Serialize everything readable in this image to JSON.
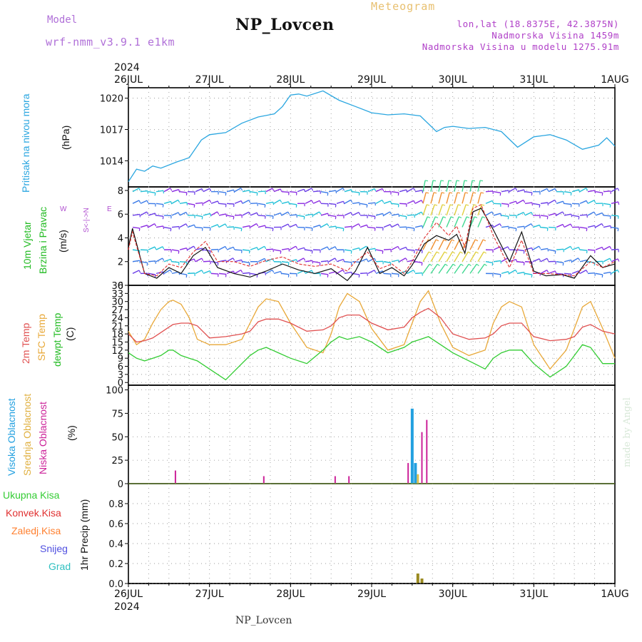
{
  "header": {
    "model_label": "Model",
    "model_name": "wrf-nmm_v3.9.1 e1km",
    "title": "NP_Lovcen",
    "meteogram": "Meteogram",
    "lonlat": "lon,lat (18.8375E, 42.3875N)",
    "altitude": "Nadmorska Visina 1459m",
    "model_altitude": "Nadmorska Visina u modelu 1275.91m"
  },
  "footer": {
    "title": "NP_Lovcen",
    "credit": "made by Angel"
  },
  "time_axis": {
    "year": "2024",
    "labels": [
      "26JUL",
      "27JUL",
      "28JUL",
      "29JUL",
      "30JUL",
      "31JUL",
      "1AUG"
    ]
  },
  "panels": {
    "pressure": {
      "label": "Pritisak na nivou mora",
      "unit": "(hPa)"
    },
    "wind": {
      "label1": "10m Vjetar",
      "label2": "Brzina i Pravac",
      "unit": "(m/s)",
      "compass_ns": "S<-|->N",
      "compass_w": "W",
      "compass_e": "E"
    },
    "temp": {
      "label1": "2m Temp",
      "label2": "SFC Temp",
      "label3": "dewpt Temp",
      "unit": "(C)"
    },
    "cloud": {
      "label1": "Visoka Oblacnost",
      "label2": "Srednja Oblacnost",
      "label3": "Niska Oblacnost",
      "unit": "(%)"
    },
    "precip": {
      "unit": "1hr Precip (mm)",
      "legend": [
        "Ukupna Kisa",
        "Konvek.Kisa",
        "Zaledj.Kisa",
        "Snijeg",
        "Grad"
      ]
    }
  },
  "colors": {
    "pressure": "#2aa6e0",
    "wind_mean": "#111111",
    "wind_gust": "#e03030",
    "t2m": "#e05050",
    "sfc": "#e8a838",
    "dew": "#33cc33",
    "high_cloud": "#22a0e0",
    "mid_cloud": "#e0c050",
    "low_cloud": "#cc2299",
    "precip": "#9a8a20",
    "precip_conv": "#d04040",
    "legend_colors": [
      "#33cc33",
      "#e03030",
      "#ff8030",
      "#5050e0",
      "#30c0c0"
    ]
  },
  "chart_data": [
    {
      "type": "line",
      "title": "Pritisak na nivou mora",
      "ylabel": "(hPa)",
      "ylim": [
        1011.5,
        1021
      ],
      "yticks": [
        1014,
        1017,
        1020
      ],
      "x_unit": "days since 26JUL 00UTC",
      "series": [
        {
          "name": "Pritisak na nivou mora",
          "x": [
            0,
            0.1,
            0.2,
            0.3,
            0.4,
            0.6,
            0.75,
            0.9,
            1.0,
            1.2,
            1.4,
            1.6,
            1.8,
            1.9,
            2.0,
            2.1,
            2.2,
            2.4,
            2.6,
            2.8,
            3.0,
            3.2,
            3.4,
            3.6,
            3.8,
            3.9,
            4.0,
            4.2,
            4.4,
            4.6,
            4.8,
            5.0,
            5.2,
            5.4,
            5.6,
            5.8,
            5.9,
            6.0
          ],
          "values": [
            1012.0,
            1013.2,
            1013.0,
            1013.5,
            1013.3,
            1013.9,
            1014.3,
            1016.0,
            1016.5,
            1016.7,
            1017.6,
            1018.2,
            1018.5,
            1019.2,
            1020.3,
            1020.4,
            1020.2,
            1020.7,
            1019.8,
            1019.2,
            1018.6,
            1018.4,
            1018.5,
            1018.3,
            1016.8,
            1017.2,
            1017.3,
            1017.1,
            1017.2,
            1016.8,
            1015.3,
            1016.3,
            1016.5,
            1016.0,
            1015.1,
            1015.5,
            1016.2,
            1015.4
          ]
        }
      ]
    },
    {
      "type": "line",
      "title": "10m Vjetar Brzina i Pravac",
      "ylabel": "(m/s)",
      "ylim": [
        0,
        8.3
      ],
      "yticks": [
        0,
        2,
        4,
        6,
        8
      ],
      "x_unit": "days since 26JUL 00UTC",
      "series": [
        {
          "name": "mean",
          "x": [
            0,
            0.05,
            0.2,
            0.35,
            0.5,
            0.65,
            0.8,
            0.95,
            1.1,
            1.3,
            1.5,
            1.7,
            1.9,
            2.1,
            2.3,
            2.5,
            2.7,
            2.8,
            2.95,
            3.1,
            3.25,
            3.4,
            3.5,
            3.65,
            3.8,
            3.95,
            4.05,
            4.15,
            4.25,
            4.35,
            4.5,
            4.7,
            4.85,
            5.0,
            5.15,
            5.35,
            5.5,
            5.7,
            5.85,
            6.0
          ],
          "values": [
            3.2,
            4.8,
            1.0,
            0.6,
            1.5,
            1.0,
            2.5,
            3.2,
            1.5,
            1.0,
            0.7,
            1.2,
            1.8,
            1.3,
            1.0,
            1.4,
            0.4,
            1.2,
            3.2,
            1.0,
            1.5,
            0.8,
            1.7,
            3.5,
            4.2,
            3.8,
            4.3,
            2.7,
            6.2,
            6.5,
            4.7,
            2.0,
            4.5,
            1.2,
            0.8,
            0.9,
            0.6,
            2.5,
            1.5,
            1.8
          ]
        },
        {
          "name": "gust",
          "x": [
            0,
            0.05,
            0.2,
            0.35,
            0.5,
            0.65,
            0.8,
            0.95,
            1.1,
            1.3,
            1.5,
            1.7,
            1.9,
            2.1,
            2.3,
            2.5,
            2.7,
            2.8,
            2.95,
            3.1,
            3.25,
            3.4,
            3.5,
            3.65,
            3.8,
            3.95,
            4.05,
            4.15,
            4.25,
            4.35,
            4.5,
            4.7,
            4.85,
            5.0,
            5.15,
            5.35,
            5.5,
            5.7,
            5.85,
            6.0
          ],
          "values": [
            3.0,
            4.5,
            1.0,
            0.8,
            1.8,
            1.5,
            2.8,
            3.7,
            2.0,
            2.0,
            1.6,
            2.1,
            2.4,
            1.8,
            1.6,
            1.8,
            1.2,
            2.0,
            2.8,
            1.4,
            1.8,
            1.0,
            2.0,
            4.0,
            5.3,
            4.2,
            5.0,
            3.2,
            6.5,
            6.8,
            4.2,
            1.5,
            3.8,
            1.0,
            1.0,
            0.9,
            0.8,
            2.0,
            1.5,
            2.0
          ]
        }
      ]
    },
    {
      "type": "line",
      "title": "2m Temp / SFC Temp / dewpt Temp",
      "ylabel": "(C)",
      "ylim": [
        -1,
        36
      ],
      "yticks": [
        0,
        3,
        6,
        9,
        12,
        15,
        18,
        21,
        24,
        27,
        30,
        33,
        36
      ],
      "x_unit": "days since 26JUL 00UTC",
      "series": [
        {
          "name": "2m Temp",
          "x": [
            0,
            0.1,
            0.2,
            0.3,
            0.4,
            0.5,
            0.55,
            0.65,
            0.75,
            0.85,
            1.0,
            1.2,
            1.4,
            1.5,
            1.6,
            1.7,
            1.85,
            2.0,
            2.2,
            2.4,
            2.5,
            2.6,
            2.7,
            2.85,
            3.0,
            3.2,
            3.4,
            3.5,
            3.6,
            3.7,
            3.85,
            4.0,
            4.2,
            4.4,
            4.5,
            4.6,
            4.7,
            4.85,
            5.0,
            5.2,
            5.4,
            5.5,
            5.6,
            5.7,
            5.85,
            6.0
          ],
          "values": [
            18,
            15,
            15.5,
            16.5,
            18.5,
            20.5,
            21.5,
            22,
            22,
            21,
            16.5,
            17,
            18,
            19,
            22.5,
            23.5,
            23.5,
            22,
            19,
            19.5,
            21,
            24,
            25,
            25,
            22,
            19.5,
            20.5,
            24,
            26,
            27.5,
            24,
            18,
            16,
            16.5,
            18,
            21,
            22,
            22,
            17,
            15.5,
            16,
            17,
            20.5,
            21.5,
            19,
            18
          ]
        },
        {
          "name": "SFC Temp",
          "x": [
            0,
            0.1,
            0.2,
            0.3,
            0.4,
            0.5,
            0.55,
            0.65,
            0.75,
            0.85,
            1.0,
            1.2,
            1.4,
            1.5,
            1.6,
            1.7,
            1.85,
            2.0,
            2.2,
            2.4,
            2.5,
            2.6,
            2.7,
            2.85,
            3.0,
            3.2,
            3.4,
            3.5,
            3.6,
            3.7,
            3.85,
            4.0,
            4.2,
            4.4,
            4.5,
            4.6,
            4.7,
            4.85,
            5.0,
            5.2,
            5.4,
            5.5,
            5.6,
            5.7,
            5.85,
            6.0
          ],
          "values": [
            19,
            14,
            16,
            22,
            27,
            30,
            30.5,
            29,
            24,
            16,
            14,
            14,
            16,
            22,
            28,
            31,
            30,
            22,
            13,
            11,
            18,
            28,
            33,
            30,
            20,
            12,
            14,
            22,
            30,
            34,
            22,
            13,
            10,
            12,
            22,
            28,
            30,
            28,
            14,
            5,
            12,
            20,
            28,
            30,
            20,
            9
          ]
        },
        {
          "name": "dewpt Temp",
          "x": [
            0,
            0.1,
            0.2,
            0.3,
            0.4,
            0.5,
            0.55,
            0.65,
            0.75,
            0.85,
            1.0,
            1.2,
            1.4,
            1.5,
            1.6,
            1.7,
            1.85,
            2.0,
            2.2,
            2.4,
            2.5,
            2.6,
            2.7,
            2.85,
            3.0,
            3.2,
            3.4,
            3.5,
            3.6,
            3.7,
            3.85,
            4.0,
            4.2,
            4.4,
            4.5,
            4.6,
            4.7,
            4.85,
            5.0,
            5.2,
            5.4,
            5.5,
            5.6,
            5.7,
            5.85,
            6.0
          ],
          "values": [
            11,
            9,
            8,
            9,
            10,
            12,
            12,
            10,
            9,
            8,
            5,
            1,
            7,
            10,
            12,
            13,
            11,
            9,
            7,
            12,
            15,
            17,
            16,
            17,
            15,
            11,
            13,
            15,
            16,
            17,
            14,
            11,
            8,
            5,
            9,
            11,
            12,
            12,
            7,
            2,
            6,
            10,
            14,
            13,
            7,
            7
          ]
        }
      ]
    },
    {
      "type": "bar",
      "title": "Oblacnost",
      "ylabel": "(%)",
      "ylim": [
        0,
        105
      ],
      "yticks": [
        0,
        25,
        50,
        75,
        100
      ],
      "x_unit": "days since 26JUL 00UTC",
      "series": [
        {
          "name": "Visoka Oblacnost",
          "x": [
            3.5,
            3.54
          ],
          "values": [
            80,
            22
          ]
        },
        {
          "name": "Srednja Oblacnost",
          "x": [
            3.57
          ],
          "values": [
            10
          ]
        },
        {
          "name": "Niska Oblacnost",
          "x": [
            0.58,
            1.67,
            2.55,
            2.72,
            3.45,
            3.62,
            3.68
          ],
          "values": [
            14,
            8,
            8,
            8,
            22,
            55,
            68
          ]
        }
      ]
    },
    {
      "type": "bar",
      "title": "1hr Precip",
      "ylabel": "1hr Precip (mm)",
      "ylim": [
        0,
        1.0
      ],
      "yticks": [
        0,
        0.2,
        0.4,
        0.6,
        0.8
      ],
      "x_unit": "days since 26JUL 00UTC",
      "series": [
        {
          "name": "Ukupna Kisa",
          "x": [
            3.57,
            3.62
          ],
          "values": [
            0.1,
            0.05
          ]
        }
      ]
    }
  ]
}
